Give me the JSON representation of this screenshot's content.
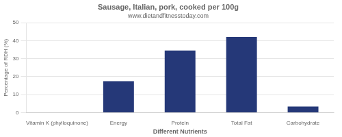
{
  "chart_data": {
    "type": "bar",
    "title": "Sausage, Italian, pork, cooked per 100g",
    "subtitle": "www.dietandfitnesstoday.com",
    "xlabel": "Different Nutrients",
    "ylabel": "Percentage of RDH (%)",
    "categories": [
      "Vitamin K (phylloquinone)",
      "Energy",
      "Protein",
      "Total Fat",
      "Carbohydrate"
    ],
    "values": [
      0,
      17.5,
      34.5,
      42.0,
      3.5
    ],
    "color": "#253878",
    "ylim": [
      0,
      50
    ],
    "yticks": [
      0,
      10,
      20,
      30,
      40,
      50
    ],
    "grid": true
  }
}
